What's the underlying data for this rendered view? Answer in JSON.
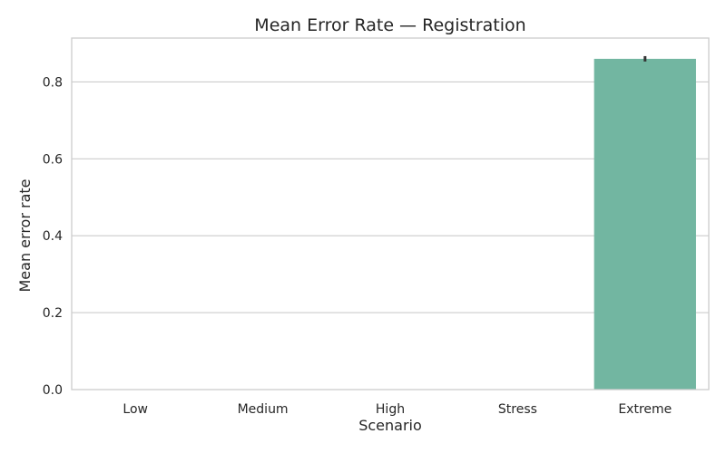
{
  "chart_data": {
    "type": "bar",
    "title": "Mean Error Rate — Registration",
    "xlabel": "Scenario",
    "ylabel": "Mean error rate",
    "categories": [
      "Low",
      "Medium",
      "High",
      "Stress",
      "Extreme"
    ],
    "values": [
      0,
      0,
      0,
      0,
      0.86
    ],
    "error_low": [
      0,
      0,
      0,
      0,
      0.853
    ],
    "error_high": [
      0,
      0,
      0,
      0,
      0.867
    ],
    "ylim": [
      0,
      0.914
    ],
    "yticks": [
      0.0,
      0.2,
      0.4,
      0.6,
      0.8
    ],
    "ytick_labels": [
      "0.0",
      "0.2",
      "0.4",
      "0.6",
      "0.8"
    ],
    "grid": true,
    "colors": {
      "bar": "#72b6a1",
      "error_bar": "#333333",
      "grid": "#cccccc"
    }
  }
}
